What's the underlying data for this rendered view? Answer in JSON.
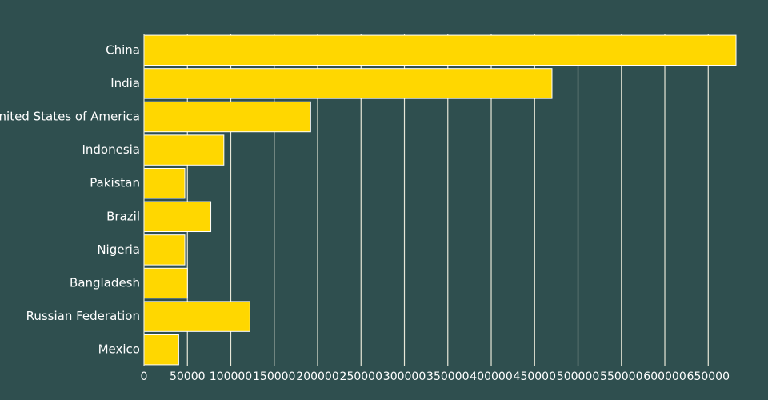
{
  "chart_data": {
    "type": "bar",
    "orientation": "horizontal",
    "title": "",
    "xlabel": "",
    "ylabel": "",
    "categories": [
      "China",
      "India",
      "United States of America",
      "Indonesia",
      "Pakistan",
      "Brazil",
      "Nigeria",
      "Bangladesh",
      "Russian Federation",
      "Mexico"
    ],
    "values": [
      682000,
      470000,
      192000,
      92000,
      47000,
      77000,
      47000,
      50000,
      122000,
      40000
    ],
    "xlim": [
      0,
      682000
    ],
    "xticks": [
      0,
      50000,
      100000,
      150000,
      200000,
      250000,
      300000,
      350000,
      400000,
      450000,
      500000,
      550000,
      600000,
      650000
    ],
    "xtick_labels": [
      "0",
      "50000",
      "100000",
      "150000",
      "200000",
      "250000",
      "300000",
      "350000",
      "400000",
      "450000",
      "500000",
      "550000",
      "600000",
      "650000"
    ],
    "grid": "vertical",
    "legend": "none",
    "colors": {
      "background": "#2f4f4f",
      "bar": "#ffd700",
      "grid": "#e8e8d8",
      "text": "#ffffff"
    }
  }
}
